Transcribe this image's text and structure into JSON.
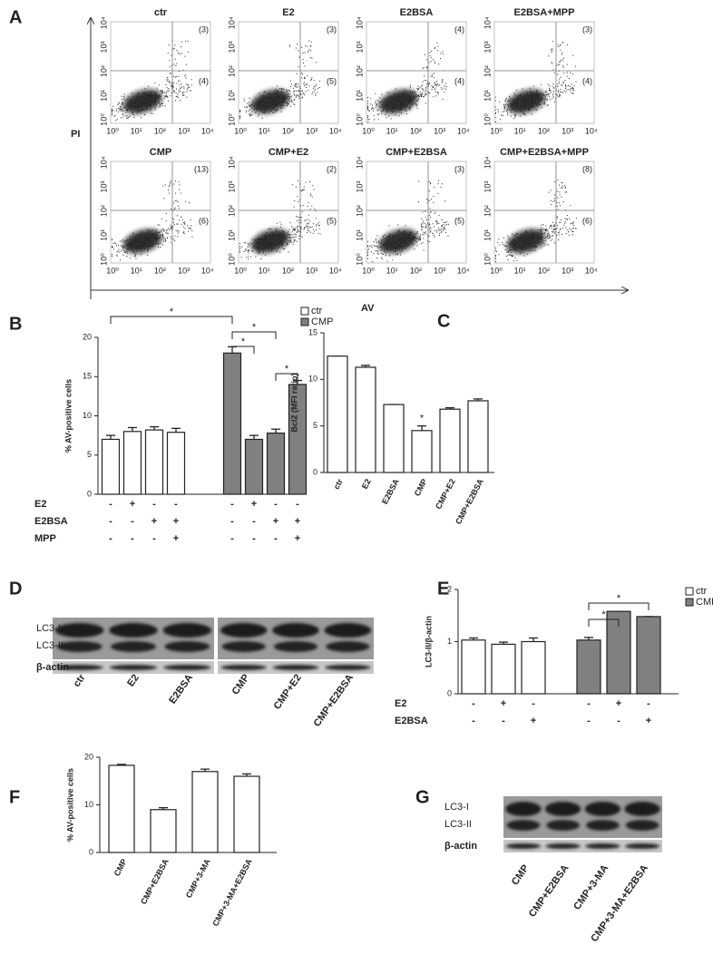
{
  "panel_labels": [
    "A",
    "B",
    "C",
    "D",
    "E",
    "F",
    "G"
  ],
  "flow": {
    "y_label": "PI",
    "x_label": "AV",
    "ticks": [
      "10⁰",
      "10¹",
      "10²",
      "10³",
      "10⁴"
    ],
    "plots": [
      {
        "title": "ctr",
        "upper": "(3)",
        "lower": "(4)"
      },
      {
        "title": "E2",
        "upper": "(3)",
        "lower": "(5)"
      },
      {
        "title": "E2BSA",
        "upper": "(4)",
        "lower": "(4)"
      },
      {
        "title": "E2BSA+MPP",
        "upper": "(3)",
        "lower": "(4)"
      },
      {
        "title": "CMP",
        "upper": "(13)",
        "lower": "(6)"
      },
      {
        "title": "CMP+E2",
        "upper": "(2)",
        "lower": "(5)"
      },
      {
        "title": "CMP+E2BSA",
        "upper": "(3)",
        "lower": "(5)"
      },
      {
        "title": "CMP+E2BSA+MPP",
        "upper": "(8)",
        "lower": "(6)"
      }
    ]
  },
  "chart_data": [
    {
      "type": "bar",
      "y_label": "% AV-positive cells",
      "ylim": [
        0,
        20
      ],
      "yticks": [
        0,
        5,
        10,
        15,
        20
      ],
      "series": [
        {
          "name": "ctr",
          "color": "#ffffff",
          "values": [
            7,
            8,
            8.2,
            7.9
          ],
          "errors": [
            0.5,
            0.5,
            0.4,
            0.5
          ]
        },
        {
          "name": "CMP",
          "color": "#808080",
          "values": [
            18,
            7,
            7.8,
            14
          ],
          "errors": [
            0.8,
            0.5,
            0.5,
            0.5
          ]
        }
      ],
      "treatments": [
        {
          "name": "E2",
          "marks": [
            "-",
            "+",
            "-",
            "-",
            "-",
            "+",
            "-",
            "-"
          ]
        },
        {
          "name": "E2BSA",
          "marks": [
            "-",
            "-",
            "+",
            "+",
            "-",
            "-",
            "+",
            "+"
          ]
        },
        {
          "name": "MPP",
          "marks": [
            "-",
            "-",
            "-",
            "+",
            "-",
            "-",
            "-",
            "+"
          ]
        }
      ],
      "annotations": [
        "*",
        "*",
        "*",
        "*"
      ]
    },
    {
      "type": "bar",
      "y_label": "Bcl2 (MFI ratio)",
      "ylim": [
        0,
        15
      ],
      "yticks": [
        0,
        5,
        10,
        15
      ],
      "categories": [
        "ctr",
        "E2",
        "E2BSA",
        "CMP",
        "CMP+E2",
        "CMP+E2BSA"
      ],
      "values": [
        12.5,
        11.3,
        7.3,
        4.5,
        6.8,
        7.7
      ],
      "errors": [
        0,
        0.2,
        0,
        0.5,
        0.15,
        0.2
      ],
      "color": "#ffffff",
      "annotations": [
        "*"
      ]
    },
    {
      "type": "bar",
      "y_label": "LC3-II/β-actin",
      "ylim": [
        0,
        2
      ],
      "yticks": [
        0,
        1,
        2
      ],
      "series": [
        {
          "name": "ctr",
          "color": "#ffffff",
          "values": [
            1.03,
            0.95,
            1.0
          ],
          "errors": [
            0.04,
            0.04,
            0.07
          ]
        },
        {
          "name": "CMP",
          "color": "#808080",
          "values": [
            1.03,
            1.58,
            1.48
          ],
          "errors": [
            0.05,
            0,
            0
          ]
        }
      ],
      "treatments": [
        {
          "name": "E2",
          "marks": [
            "-",
            "+",
            "-",
            "-",
            "+",
            "-"
          ]
        },
        {
          "name": "E2BSA",
          "marks": [
            "-",
            "-",
            "+",
            "-",
            "-",
            "+"
          ]
        }
      ],
      "annotations": [
        "*",
        "*"
      ]
    },
    {
      "type": "bar",
      "y_label": "% AV-positive cells",
      "ylim": [
        0,
        20
      ],
      "yticks": [
        0,
        10,
        20
      ],
      "categories": [
        "CMP",
        "CMP+E2BSA",
        "CMP+3-MA",
        "CMP+3-MA+E2BSA"
      ],
      "values": [
        18.3,
        9,
        17,
        16
      ],
      "errors": [
        0.2,
        0.4,
        0.5,
        0.5
      ],
      "color": "#ffffff"
    }
  ],
  "blots": [
    {
      "rows": [
        "LC3-I",
        "LC3-II",
        "β-actin"
      ],
      "lanes": [
        "ctr",
        "E2",
        "E2BSA",
        "CMP",
        "CMP+E2",
        "CMP+E2BSA"
      ]
    },
    {
      "rows": [
        "LC3-I",
        "LC3-II",
        "β-actin"
      ],
      "lanes": [
        "CMP",
        "CMP+E2BSA",
        "CMP+3-MA",
        "CMP+3-MA+E2BSA"
      ]
    }
  ]
}
